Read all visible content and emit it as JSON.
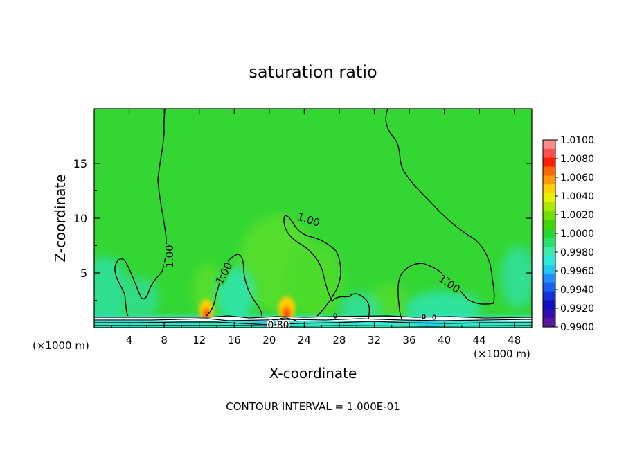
{
  "chart_data": {
    "type": "heatmap",
    "title": "saturation ratio",
    "xlabel": "X-coordinate",
    "ylabel": "Z-coordinate",
    "x_unit_left": "(×1000 m)",
    "x_unit_right": "(×1000 m)",
    "footer": "CONTOUR INTERVAL = 1.000E-01",
    "xlim": [
      0,
      50
    ],
    "ylim": [
      0,
      20
    ],
    "x_ticks": [
      "4",
      "8",
      "12",
      "16",
      "20",
      "24",
      "28",
      "32",
      "36",
      "40",
      "44",
      "48"
    ],
    "y_ticks": [
      "5",
      "10",
      "15"
    ],
    "grid": false,
    "legend_position": "right",
    "colorbar": {
      "labels": [
        "1.0100",
        "1.0080",
        "1.0060",
        "1.0040",
        "1.0020",
        "1.0000",
        "0.9980",
        "0.9960",
        "0.9940",
        "0.9920",
        "0.9900"
      ],
      "colors": [
        "#ff8a8a",
        "#ff5050",
        "#ff1e00",
        "#ff6a00",
        "#ff9a00",
        "#ffd000",
        "#e4f200",
        "#a8ea00",
        "#6fe000",
        "#3ed800",
        "#24d830",
        "#28e070",
        "#3de8a8",
        "#2ee8d8",
        "#22c8f0",
        "#1e90ff",
        "#1a60f0",
        "#1430d8",
        "#1010c0",
        "#3010b0",
        "#5a1aa0"
      ]
    },
    "contour_labels": [
      "1.00",
      "1.00",
      "1.00",
      "1.00",
      "0.80"
    ]
  }
}
